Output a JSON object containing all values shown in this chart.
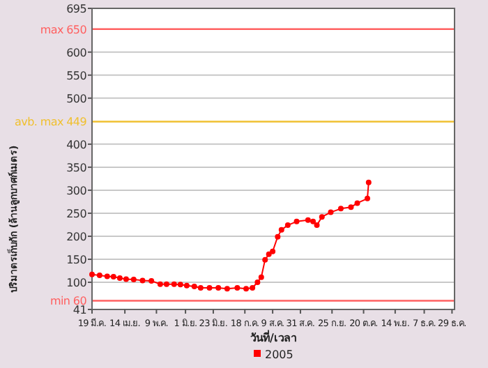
{
  "chart_data": {
    "type": "line",
    "xlabel": "วันที่/เวลา",
    "ylabel": "ปริมาตรเก็บกัก (ล้านลูกบาศก์เมตร)",
    "marker": "circle",
    "grid": "y",
    "legend": "bottom",
    "ylim": [
      41,
      695
    ],
    "yticks": [
      41,
      100,
      150,
      200,
      250,
      300,
      350,
      400,
      500,
      550,
      600,
      695
    ],
    "xlim": [
      "2005-03-19",
      "2005-12-31"
    ],
    "xticks": [
      {
        "value": "2005-03-19",
        "label": "19 มี.ค."
      },
      {
        "value": "2005-04-14",
        "label": "14 เม.ย."
      },
      {
        "value": "2005-05-09",
        "label": "9 พ.ค."
      },
      {
        "value": "2005-06-01",
        "label": "1 มิ.ย."
      },
      {
        "value": "2005-06-23",
        "label": "23 มิ.ย."
      },
      {
        "value": "2005-07-18",
        "label": "18 ก.ค."
      },
      {
        "value": "2005-08-09",
        "label": "9 ส.ค."
      },
      {
        "value": "2005-08-31",
        "label": "31 ส.ค."
      },
      {
        "value": "2005-09-25",
        "label": "25 ก.ย."
      },
      {
        "value": "2005-10-20",
        "label": "20 ต.ค."
      },
      {
        "value": "2005-11-14",
        "label": "14 พ.ย."
      },
      {
        "value": "2005-12-07",
        "label": "7 ธ.ค."
      },
      {
        "value": "2005-12-29",
        "label": "29 ธ.ค."
      }
    ],
    "ref_lines": [
      {
        "axis": "y",
        "value": 650,
        "label": "max 650",
        "color": "#ff6060"
      },
      {
        "axis": "y",
        "value": 449,
        "label": "avb. max 449",
        "color": "#f0c030"
      },
      {
        "axis": "y",
        "value": 60,
        "label": "min 60",
        "color": "#ff6060"
      }
    ],
    "series": [
      {
        "name": "2005",
        "color": "#ff0000",
        "x": [
          "2005-03-19",
          "2005-03-25",
          "2005-03-31",
          "2005-04-05",
          "2005-04-10",
          "2005-04-15",
          "2005-04-21",
          "2005-04-28",
          "2005-05-05",
          "2005-05-12",
          "2005-05-17",
          "2005-05-23",
          "2005-05-28",
          "2005-06-02",
          "2005-06-08",
          "2005-06-13",
          "2005-06-20",
          "2005-06-27",
          "2005-07-04",
          "2005-07-12",
          "2005-07-19",
          "2005-07-24",
          "2005-07-28",
          "2005-07-31",
          "2005-08-03",
          "2005-08-06",
          "2005-08-09",
          "2005-08-13",
          "2005-08-16",
          "2005-08-21",
          "2005-08-28",
          "2005-09-06",
          "2005-09-10",
          "2005-09-13",
          "2005-09-17",
          "2005-09-24",
          "2005-10-02",
          "2005-10-10",
          "2005-10-15",
          "2005-10-23",
          "2005-10-24"
        ],
        "values": [
          117,
          115,
          113,
          112,
          109,
          107,
          106,
          104,
          103,
          96,
          96,
          96,
          95,
          93,
          91,
          88,
          88,
          88,
          86,
          88,
          86,
          88,
          100,
          111,
          149,
          161,
          167,
          199,
          214,
          224,
          232,
          235,
          232,
          224,
          242,
          252,
          260,
          263,
          272,
          282,
          317
        ]
      }
    ]
  }
}
